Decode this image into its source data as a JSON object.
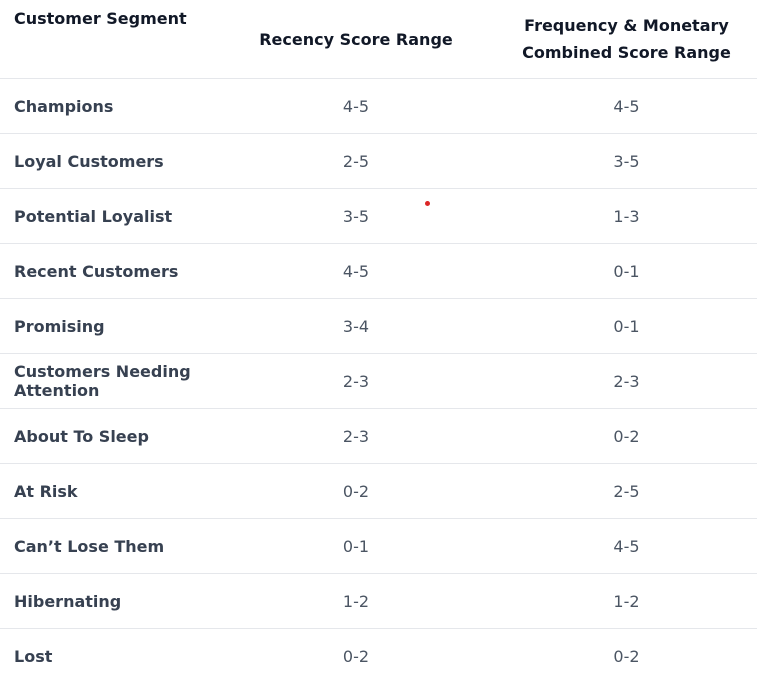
{
  "table": {
    "headers": [
      "Customer Segment",
      "Recency Score Range",
      "Frequency & Monetary Combined Score Range"
    ],
    "rows": [
      [
        "Champions",
        "4-5",
        "4-5"
      ],
      [
        "Loyal Customers",
        "2-5",
        "3-5"
      ],
      [
        "Potential Loyalist",
        "3-5",
        "1-3"
      ],
      [
        "Recent Customers",
        "4-5",
        "0-1"
      ],
      [
        "Promising",
        "3-4",
        "0-1"
      ],
      [
        "Customers Needing Attention",
        "2-3",
        "2-3"
      ],
      [
        "About To Sleep",
        "2-3",
        "0-2"
      ],
      [
        "At Risk",
        "0-2",
        "2-5"
      ],
      [
        "Can’t Lose Them",
        "0-1",
        "4-5"
      ],
      [
        "Hibernating",
        "1-2",
        "1-2"
      ],
      [
        "Lost",
        "0-2",
        "0-2"
      ]
    ]
  }
}
